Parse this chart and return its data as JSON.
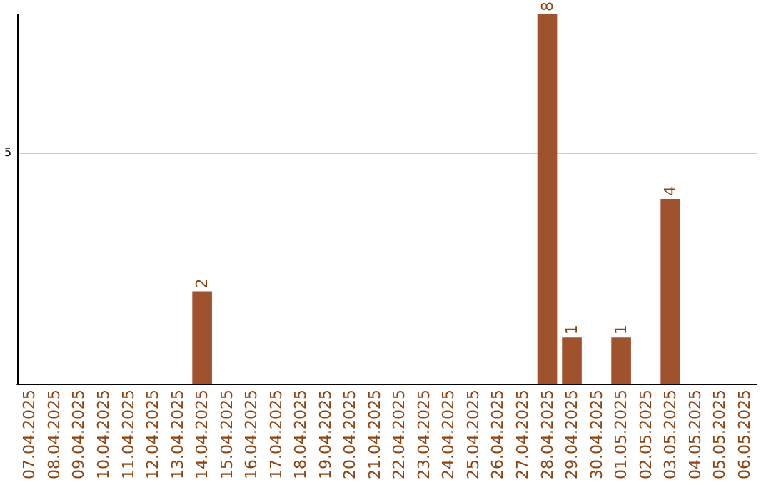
{
  "chart_data": {
    "type": "bar",
    "categories": [
      "07.04.2025",
      "08.04.2025",
      "09.04.2025",
      "10.04.2025",
      "11.04.2025",
      "12.04.2025",
      "13.04.2025",
      "14.04.2025",
      "15.04.2025",
      "16.04.2025",
      "17.04.2025",
      "18.04.2025",
      "19.04.2025",
      "20.04.2025",
      "21.04.2025",
      "22.04.2025",
      "23.04.2025",
      "24.04.2025",
      "25.04.2025",
      "26.04.2025",
      "27.04.2025",
      "28.04.2025",
      "29.04.2025",
      "30.04.2025",
      "01.05.2025",
      "02.05.2025",
      "03.05.2025",
      "04.05.2025",
      "05.05.2025",
      "06.05.2025"
    ],
    "values": [
      0,
      0,
      0,
      0,
      0,
      0,
      0,
      2,
      0,
      0,
      0,
      0,
      0,
      0,
      0,
      0,
      0,
      0,
      0,
      0,
      0,
      8,
      1,
      0,
      1,
      0,
      4,
      0,
      0,
      0
    ],
    "value_labels": [
      null,
      null,
      null,
      null,
      null,
      null,
      null,
      "2",
      null,
      null,
      null,
      null,
      null,
      null,
      null,
      null,
      null,
      null,
      null,
      null,
      null,
      "8",
      "1",
      null,
      "1",
      null,
      "4",
      null,
      null,
      null
    ],
    "color": "#a0522d",
    "ylim": [
      0,
      8
    ],
    "yticks": [
      5
    ],
    "grid": "y"
  }
}
